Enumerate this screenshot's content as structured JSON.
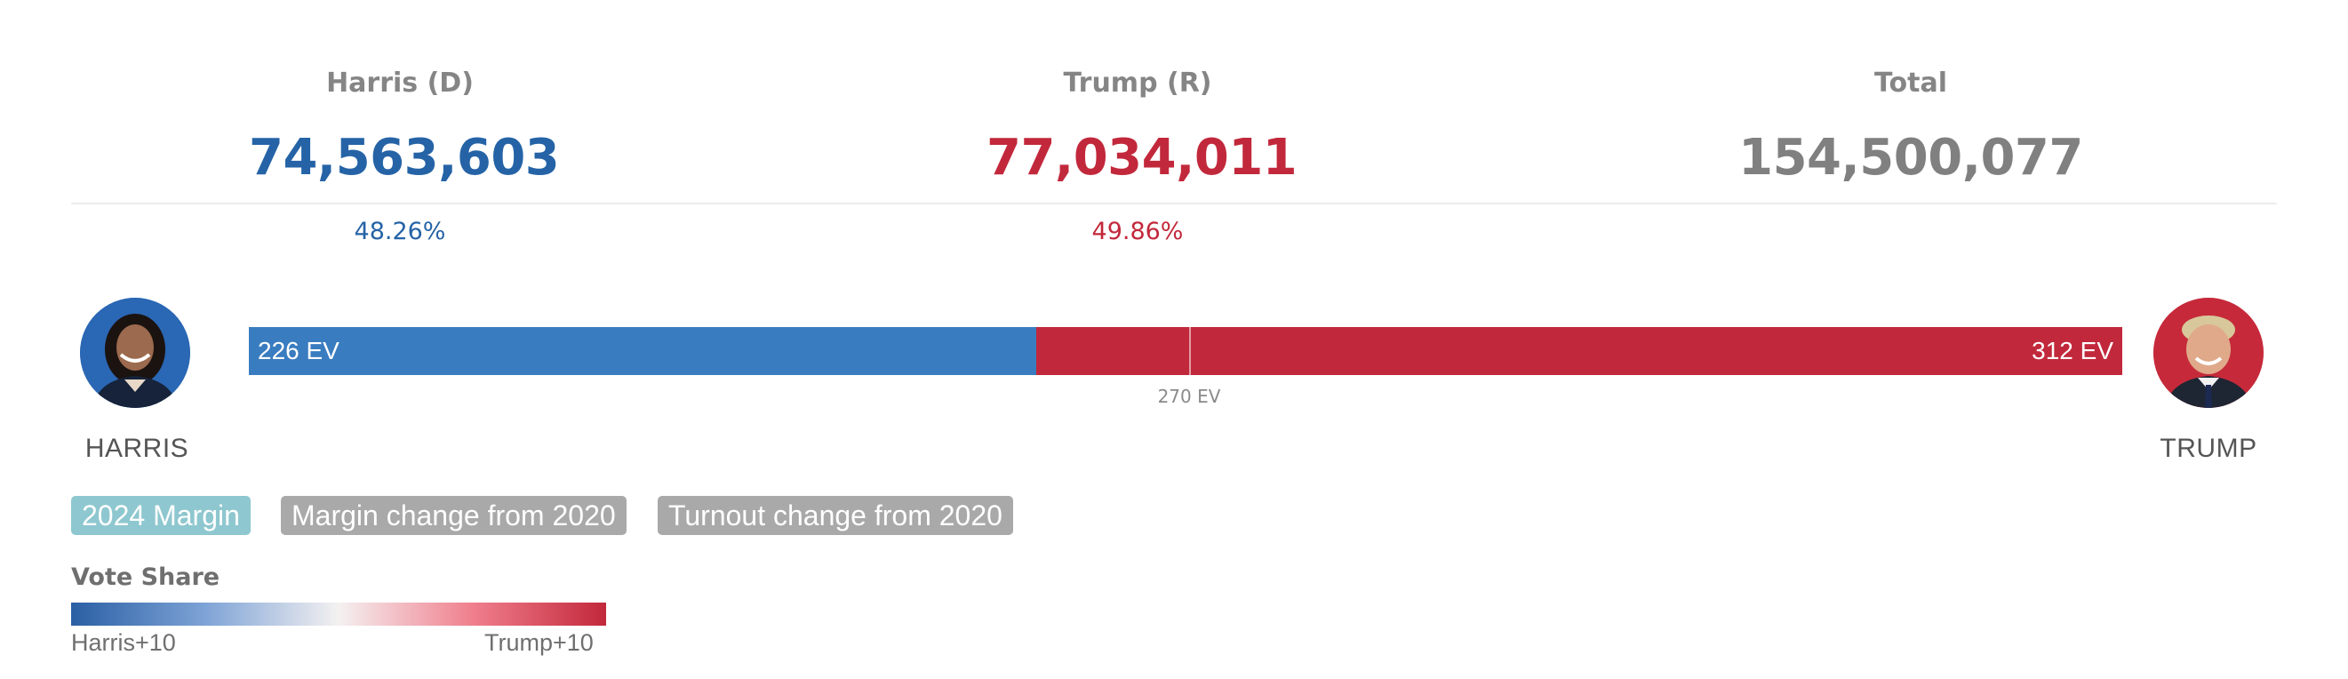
{
  "colors": {
    "democrat": "#2563a6",
    "democrat_bar": "#3a7cc0",
    "republican": "#c2283b",
    "total": "#808080",
    "tab_active": "#8ec7cf",
    "tab_inactive": "#a9a9a9"
  },
  "summary": {
    "harris": {
      "header": "Harris (D)",
      "votes": "74,563,603",
      "pct": "48.26%"
    },
    "trump": {
      "header": "Trump (R)",
      "votes": "77,034,011",
      "pct": "49.86%"
    },
    "total": {
      "header": "Total",
      "votes": "154,500,077"
    }
  },
  "candidates": {
    "left": {
      "name": "HARRIS",
      "photo_icon": "harris-photo"
    },
    "right": {
      "name": "TRUMP",
      "photo_icon": "trump-photo"
    }
  },
  "electoral": {
    "harris_ev": 226,
    "trump_ev": 312,
    "threshold": 270,
    "harris_label": "226 EV",
    "trump_label": "312 EV",
    "threshold_label": "270 EV"
  },
  "tabs": [
    {
      "label": "2024 Margin",
      "active": true
    },
    {
      "label": "Margin change from 2020",
      "active": false
    },
    {
      "label": "Turnout change from 2020",
      "active": false
    }
  ],
  "legend": {
    "title": "Vote Share",
    "left_label": "Harris+10",
    "right_label": "Trump+10"
  }
}
